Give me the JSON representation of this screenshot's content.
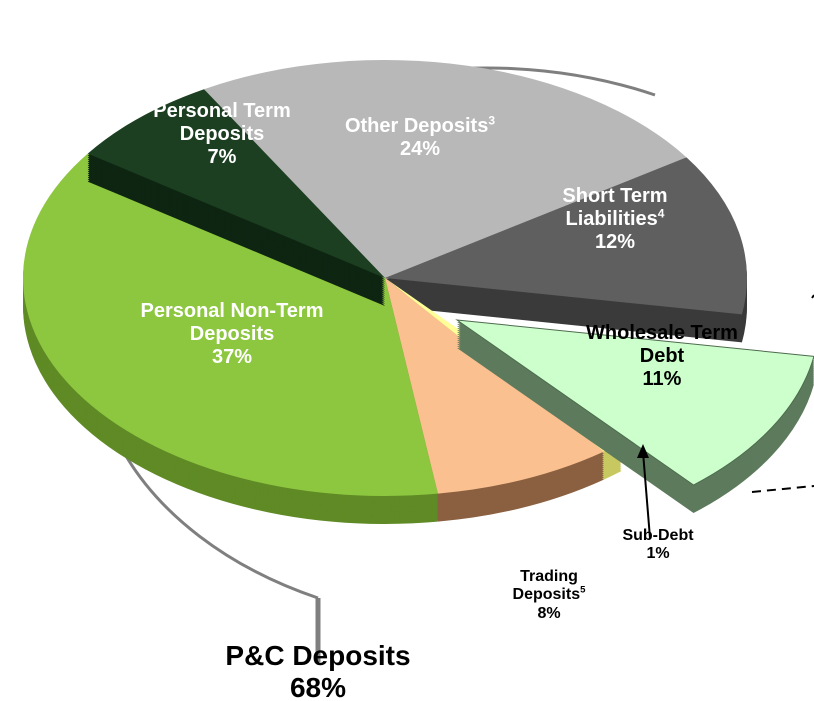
{
  "chart_data": {
    "type": "pie",
    "categories": [
      "Other Deposits",
      "Short Term Liabilities",
      "Wholesale Term Debt",
      "Sub-Debt",
      "Trading Deposits",
      "Personal Non-Term Deposits",
      "Personal Term Deposits"
    ],
    "notes": [
      "3",
      "4",
      null,
      null,
      "5",
      null,
      null
    ],
    "values": [
      24,
      12,
      11,
      1,
      8,
      37,
      7
    ],
    "value_labels": [
      "24%",
      "12%",
      "11%",
      "1%",
      "8%",
      "37%",
      "7%"
    ],
    "colors": [
      "#b8b8b8",
      "#5f5f5f",
      "#ccffcc",
      "#ffff99",
      "#fac090",
      "#8dc63f",
      "#1b3f20"
    ],
    "side_colors": [
      "#8a8a8a",
      "#3a3a3a",
      "#5d7a5d",
      "#c8c860",
      "#8a6040",
      "#5f8a25",
      "#0e2512"
    ],
    "annotation": {
      "text": "P&C Deposits",
      "value": 68,
      "value_label": "68%"
    }
  }
}
